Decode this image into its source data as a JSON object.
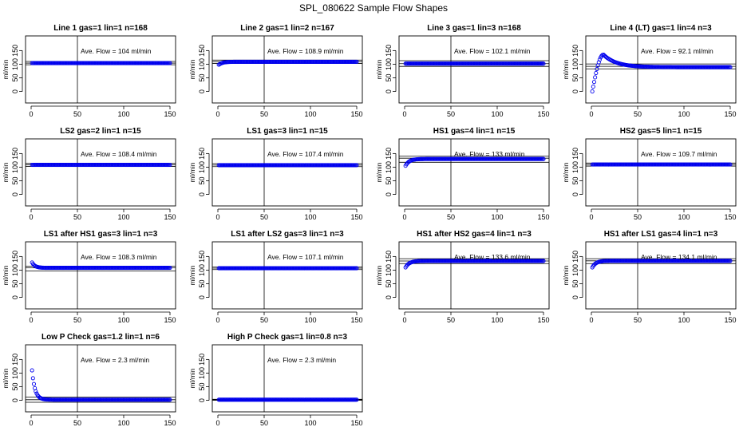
{
  "figure": {
    "title": "SPL_080622  Sample Flow Shapes"
  },
  "chart_data": [
    {
      "type": "scatter",
      "title": "Line 1 gas=1 lin=1 n=168",
      "ylabel": "ml/min",
      "xlim": [
        0,
        150
      ],
      "ylim": [
        -10,
        195
      ],
      "xticks": [
        0,
        50,
        100,
        150
      ],
      "yticks": [
        0,
        50,
        100,
        150
      ],
      "average_flow": "104",
      "annotation": "Ave. Flow =  104  ml/min",
      "average_lines": [
        104,
        110,
        98
      ],
      "vline_x": 50,
      "shape": "flat",
      "flat_value": 104,
      "point_color": "#0000ee"
    },
    {
      "type": "scatter",
      "title": "Line 2 gas=1 lin=2 n=167",
      "ylabel": "ml/min",
      "xlim": [
        0,
        150
      ],
      "ylim": [
        -10,
        195
      ],
      "xticks": [
        0,
        50,
        100,
        150
      ],
      "yticks": [
        0,
        50,
        100,
        150
      ],
      "average_flow": "108.9",
      "annotation": "Ave. Flow =  108.9  ml/min",
      "average_lines": [
        108.9,
        115,
        103
      ],
      "vline_x": 50,
      "shape": "rise",
      "start_value": 98,
      "flat_value": 108.9,
      "point_color": "#0000ee"
    },
    {
      "type": "scatter",
      "title": "Line 3 gas=1 lin=3 n=168",
      "ylabel": "ml/min",
      "xlim": [
        0,
        150
      ],
      "ylim": [
        -10,
        195
      ],
      "xticks": [
        0,
        50,
        100,
        150
      ],
      "yticks": [
        0,
        50,
        100,
        150
      ],
      "average_flow": "102.1",
      "annotation": "Ave. Flow =  102.1  ml/min",
      "average_lines": [
        102.1,
        113,
        92
      ],
      "vline_x": 50,
      "shape": "flat",
      "flat_value": 102.1,
      "point_color": "#0000ee"
    },
    {
      "type": "scatter",
      "title": "Line 4 (LT) gas=1 lin=4 n=3",
      "ylabel": "ml/min",
      "xlim": [
        0,
        150
      ],
      "ylim": [
        -10,
        195
      ],
      "xticks": [
        0,
        50,
        100,
        150
      ],
      "yticks": [
        0,
        50,
        100,
        150
      ],
      "average_flow": "92.1",
      "annotation": "Ave. Flow =  92.1  ml/min",
      "average_lines": [
        92.1,
        101,
        83
      ],
      "vline_x": 50,
      "shape": "overshoot",
      "start_value": 0,
      "peak_value": 135,
      "peak_x": 12,
      "flat_value": 89,
      "point_color": "#0000ee"
    },
    {
      "type": "scatter",
      "title": "LS2 gas=2 lin=1 n=15",
      "ylabel": "ml/min",
      "xlim": [
        0,
        150
      ],
      "ylim": [
        -10,
        195
      ],
      "xticks": [
        0,
        50,
        100,
        150
      ],
      "yticks": [
        0,
        50,
        100,
        150
      ],
      "average_flow": "108.4",
      "annotation": "Ave. Flow =  108.4  ml/min",
      "average_lines": [
        108.4,
        114,
        103
      ],
      "vline_x": 50,
      "shape": "flat",
      "flat_value": 108.4,
      "point_color": "#0000ee"
    },
    {
      "type": "scatter",
      "title": "LS1 gas=3 lin=1 n=15",
      "ylabel": "ml/min",
      "xlim": [
        0,
        150
      ],
      "ylim": [
        -10,
        195
      ],
      "xticks": [
        0,
        50,
        100,
        150
      ],
      "yticks": [
        0,
        50,
        100,
        150
      ],
      "average_flow": "107.4",
      "annotation": "Ave. Flow =  107.4  ml/min",
      "average_lines": [
        107.4,
        113,
        102
      ],
      "vline_x": 50,
      "shape": "flat",
      "flat_value": 107.4,
      "point_color": "#0000ee"
    },
    {
      "type": "scatter",
      "title": "HS1 gas=4 lin=1 n=15",
      "ylabel": "ml/min",
      "xlim": [
        0,
        150
      ],
      "ylim": [
        -10,
        195
      ],
      "xticks": [
        0,
        50,
        100,
        150
      ],
      "yticks": [
        0,
        50,
        100,
        150
      ],
      "average_flow": "133",
      "annotation": "Ave. Flow =  133  ml/min",
      "average_lines": [
        133,
        140,
        118
      ],
      "vline_x": 50,
      "shape": "rise",
      "start_value": 105,
      "flat_value": 130,
      "point_color": "#0000ee"
    },
    {
      "type": "scatter",
      "title": "HS2 gas=5 lin=1 n=15",
      "ylabel": "ml/min",
      "xlim": [
        0,
        150
      ],
      "ylim": [
        -10,
        195
      ],
      "xticks": [
        0,
        50,
        100,
        150
      ],
      "yticks": [
        0,
        50,
        100,
        150
      ],
      "average_flow": "109.7",
      "annotation": "Ave. Flow =  109.7  ml/min",
      "average_lines": [
        109.7,
        115,
        104
      ],
      "vline_x": 50,
      "shape": "flat",
      "flat_value": 109.7,
      "point_color": "#0000ee"
    },
    {
      "type": "scatter",
      "title": "LS1 after HS1 gas=3 lin=1 n=3",
      "ylabel": "ml/min",
      "xlim": [
        0,
        150
      ],
      "ylim": [
        -10,
        195
      ],
      "xticks": [
        0,
        50,
        100,
        150
      ],
      "yticks": [
        0,
        50,
        100,
        150
      ],
      "average_flow": "108.3",
      "annotation": "Ave. Flow =  108.3  ml/min",
      "average_lines": [
        108.3,
        114,
        97
      ],
      "vline_x": 50,
      "shape": "decay",
      "start_value": 128,
      "flat_value": 108.3,
      "point_color": "#0000ee"
    },
    {
      "type": "scatter",
      "title": "LS1 after LS2 gas=3 lin=1 n=3",
      "ylabel": "ml/min",
      "xlim": [
        0,
        150
      ],
      "ylim": [
        -10,
        195
      ],
      "xticks": [
        0,
        50,
        100,
        150
      ],
      "yticks": [
        0,
        50,
        100,
        150
      ],
      "average_flow": "107.1",
      "annotation": "Ave. Flow =  107.1  ml/min",
      "average_lines": [
        107.1,
        112,
        102
      ],
      "vline_x": 50,
      "shape": "flat",
      "flat_value": 107.1,
      "point_color": "#0000ee"
    },
    {
      "type": "scatter",
      "title": "HS1 after HS2 gas=4 lin=1 n=3",
      "ylabel": "ml/min",
      "xlim": [
        0,
        150
      ],
      "ylim": [
        -10,
        195
      ],
      "xticks": [
        0,
        50,
        100,
        150
      ],
      "yticks": [
        0,
        50,
        100,
        150
      ],
      "average_flow": "133.6",
      "annotation": "Ave. Flow =  133.6  ml/min",
      "average_lines": [
        133.6,
        142,
        124
      ],
      "vline_x": 50,
      "shape": "rise",
      "start_value": 110,
      "flat_value": 133.6,
      "point_color": "#0000ee"
    },
    {
      "type": "scatter",
      "title": "HS1 after LS1 gas=4 lin=1 n=3",
      "ylabel": "ml/min",
      "xlim": [
        0,
        150
      ],
      "ylim": [
        -10,
        195
      ],
      "xticks": [
        0,
        50,
        100,
        150
      ],
      "yticks": [
        0,
        50,
        100,
        150
      ],
      "average_flow": "134.1",
      "annotation": "Ave. Flow =  134.1  ml/min",
      "average_lines": [
        134.1,
        142,
        124
      ],
      "vline_x": 50,
      "shape": "rise",
      "start_value": 110,
      "flat_value": 134.1,
      "point_color": "#0000ee"
    },
    {
      "type": "scatter",
      "title": "Low P Check gas=1.2 lin=1 n=6",
      "ylabel": "ml/min",
      "xlim": [
        0,
        150
      ],
      "ylim": [
        -10,
        195
      ],
      "xticks": [
        0,
        50,
        100,
        150
      ],
      "yticks": [
        0,
        50,
        100,
        150
      ],
      "average_flow": "2.3",
      "annotation": "Ave. Flow =  2.3  ml/min",
      "average_lines": [
        2.3,
        12,
        -7
      ],
      "vline_x": 50,
      "shape": "decay",
      "start_value": 110,
      "flat_value": 2.3,
      "point_color": "#0000ee"
    },
    {
      "type": "scatter",
      "title": "High P Check gas=1 lin=0.8 n=3",
      "ylabel": "ml/min",
      "xlim": [
        0,
        150
      ],
      "ylim": [
        -10,
        195
      ],
      "xticks": [
        0,
        50,
        100,
        150
      ],
      "yticks": [
        0,
        50,
        100,
        150
      ],
      "average_flow": "2.3",
      "annotation": "Ave. Flow =  2.3  ml/min",
      "average_lines": [
        2.3,
        4,
        0.5
      ],
      "vline_x": 50,
      "shape": "flat",
      "flat_value": 2.3,
      "point_color": "#0000ee"
    }
  ]
}
